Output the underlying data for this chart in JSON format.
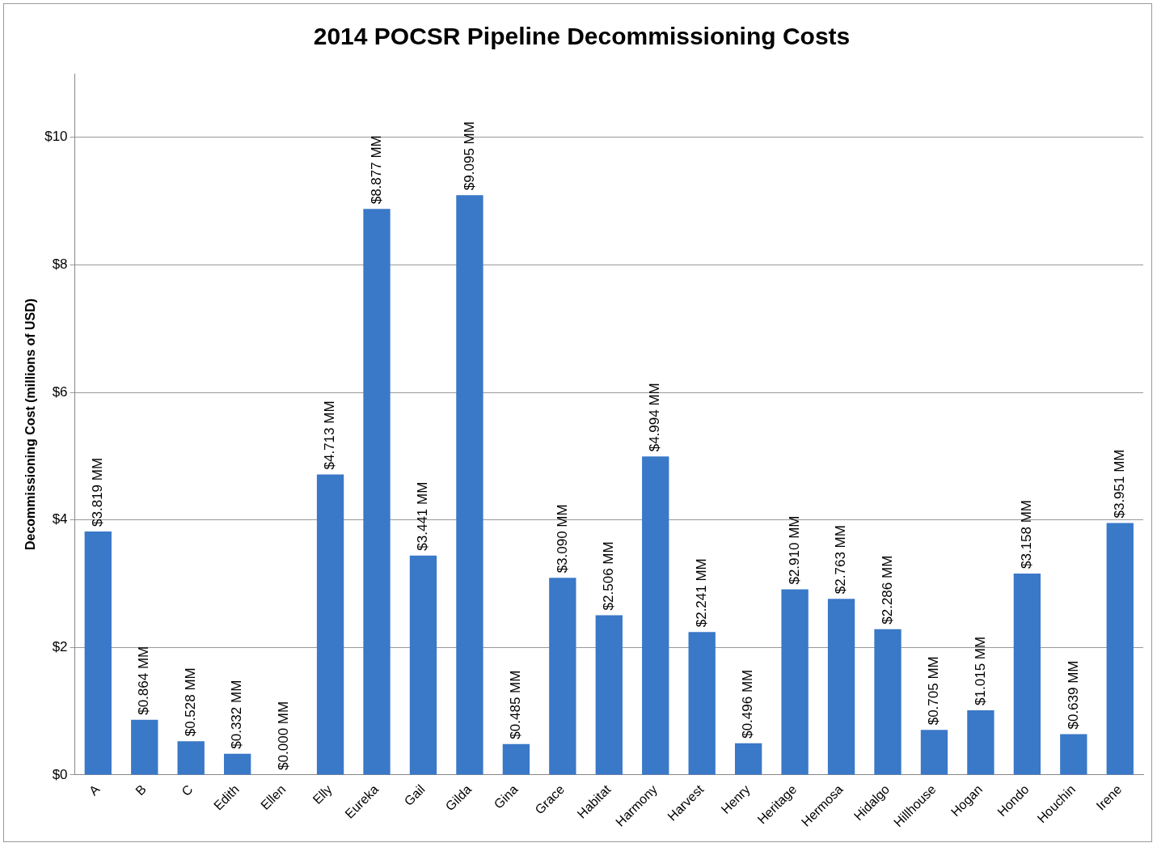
{
  "chart_data": {
    "type": "bar",
    "title": "2014 POCSR Pipeline Decommissioning Costs",
    "ylabel": "Decommissioning Cost (millions of USD)",
    "categories": [
      "A",
      "B",
      "C",
      "Edith",
      "Ellen",
      "Elly",
      "Eureka",
      "Gail",
      "Gilda",
      "Gina",
      "Grace",
      "Habitat",
      "Harmony",
      "Harvest",
      "Henry",
      "Heritage",
      "Hermosa",
      "Hidalgo",
      "Hillhouse",
      "Hogan",
      "Hondo",
      "Houchin",
      "Irene"
    ],
    "values": [
      3.819,
      0.864,
      0.528,
      0.332,
      0.0,
      4.713,
      8.877,
      3.441,
      9.095,
      0.485,
      3.09,
      2.506,
      4.994,
      2.241,
      0.496,
      2.91,
      2.763,
      2.286,
      0.705,
      1.015,
      3.158,
      0.639,
      3.951
    ],
    "value_labels": [
      "$3.819 MM",
      "$0.864 MM",
      "$0.528 MM",
      "$0.332 MM",
      "$0.000 MM",
      "$4.713 MM",
      "$8.877 MM",
      "$3.441 MM",
      "$9.095 MM",
      "$0.485 MM",
      "$3.090 MM",
      "$2.506 MM",
      "$4.994 MM",
      "$2.241 MM",
      "$0.496 MM",
      "$2.910 MM",
      "$2.763 MM",
      "$2.286 MM",
      "$0.705 MM",
      "$1.015 MM",
      "$3.158 MM",
      "$0.639 MM",
      "$3.951 MM"
    ],
    "color": "#3a78c8",
    "ylim": [
      0,
      11
    ],
    "yticks": [
      {
        "value": 0,
        "label": "$0"
      },
      {
        "value": 2,
        "label": "$2"
      },
      {
        "value": 4,
        "label": "$4"
      },
      {
        "value": 6,
        "label": "$6"
      },
      {
        "value": 8,
        "label": "$8"
      },
      {
        "value": 10,
        "label": "$10"
      }
    ],
    "grid": "y",
    "legend": false
  }
}
